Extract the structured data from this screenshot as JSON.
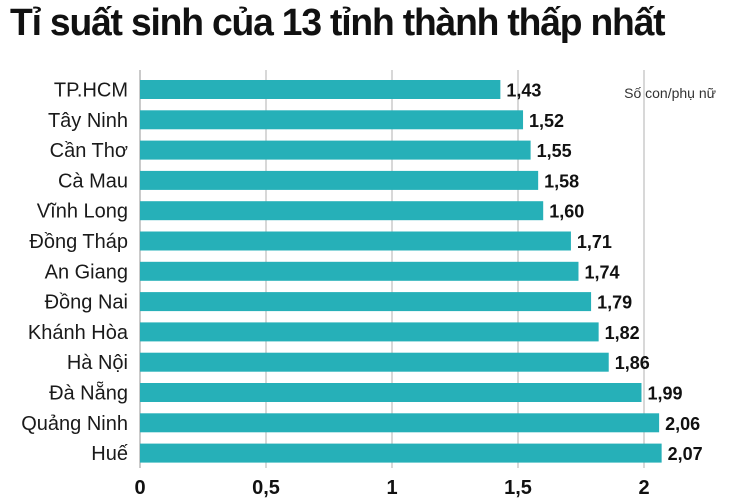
{
  "chart_data": {
    "type": "bar",
    "orientation": "horizontal",
    "title": "Tỉ suất sinh của 13 tỉnh thành thấp nhất",
    "unit_label": "Số con/phụ nữ",
    "categories": [
      "TP.HCM",
      "Tây Ninh",
      "Cần Thơ",
      "Cà Mau",
      "Vĩnh Long",
      "Đồng Tháp",
      "An Giang",
      "Đồng Nai",
      "Khánh Hòa",
      "Hà Nội",
      "Đà Nẵng",
      "Quảng Ninh",
      "Huế"
    ],
    "values": [
      1.43,
      1.52,
      1.55,
      1.58,
      1.6,
      1.71,
      1.74,
      1.79,
      1.82,
      1.86,
      1.99,
      2.06,
      2.07
    ],
    "value_labels": [
      "1,43",
      "1,52",
      "1,55",
      "1,58",
      "1,60",
      "1,71",
      "1,74",
      "1,79",
      "1,82",
      "1,86",
      "1,99",
      "2,06",
      "2,07"
    ],
    "xticks": [
      0,
      0.5,
      1,
      1.5,
      2
    ],
    "xtick_labels": [
      "0",
      "0,5",
      "1",
      "1,5",
      "2"
    ],
    "xlim": [
      0,
      2.1
    ],
    "grid": true,
    "colors": {
      "bar": "#26b0b8",
      "grid": "#bdbdbd",
      "text": "#111111"
    }
  }
}
